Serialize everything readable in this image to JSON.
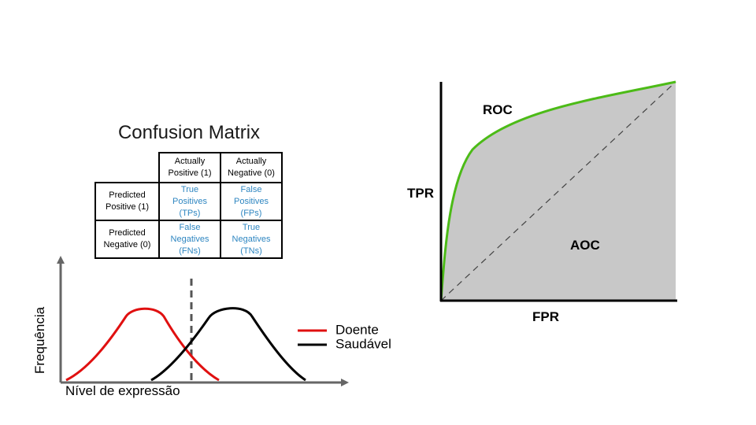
{
  "confusion_matrix": {
    "title": "Confusion Matrix",
    "col_headers": [
      [
        "Actually",
        "Positive (1)"
      ],
      [
        "Actually",
        "Negative (0)"
      ]
    ],
    "row_headers": [
      [
        "Predicted",
        "Positive (1)"
      ],
      [
        "Predicted",
        "Negative (0)"
      ]
    ],
    "cells": [
      [
        [
          "True",
          "Positives",
          "(TPs)"
        ],
        [
          "False",
          "Positives",
          "(FPs)"
        ]
      ],
      [
        [
          "False",
          "Negatives",
          "(FNs)"
        ],
        [
          "True",
          "Negatives",
          "(TNs)"
        ]
      ]
    ],
    "cell_color": "#2e86c1"
  },
  "distribution_plot": {
    "ylabel": "Frequência",
    "xlabel": "Nível de expressão",
    "legend": [
      {
        "label": "Doente",
        "color": "#e01010"
      },
      {
        "label": "Saudável",
        "color": "#000000"
      }
    ]
  },
  "roc_plot": {
    "ylabel": "TPR",
    "xlabel": "FPR",
    "curve_label": "ROC",
    "area_label": "AOC",
    "curve_color": "#4cbb17",
    "area_color": "#c8c8c8"
  }
}
